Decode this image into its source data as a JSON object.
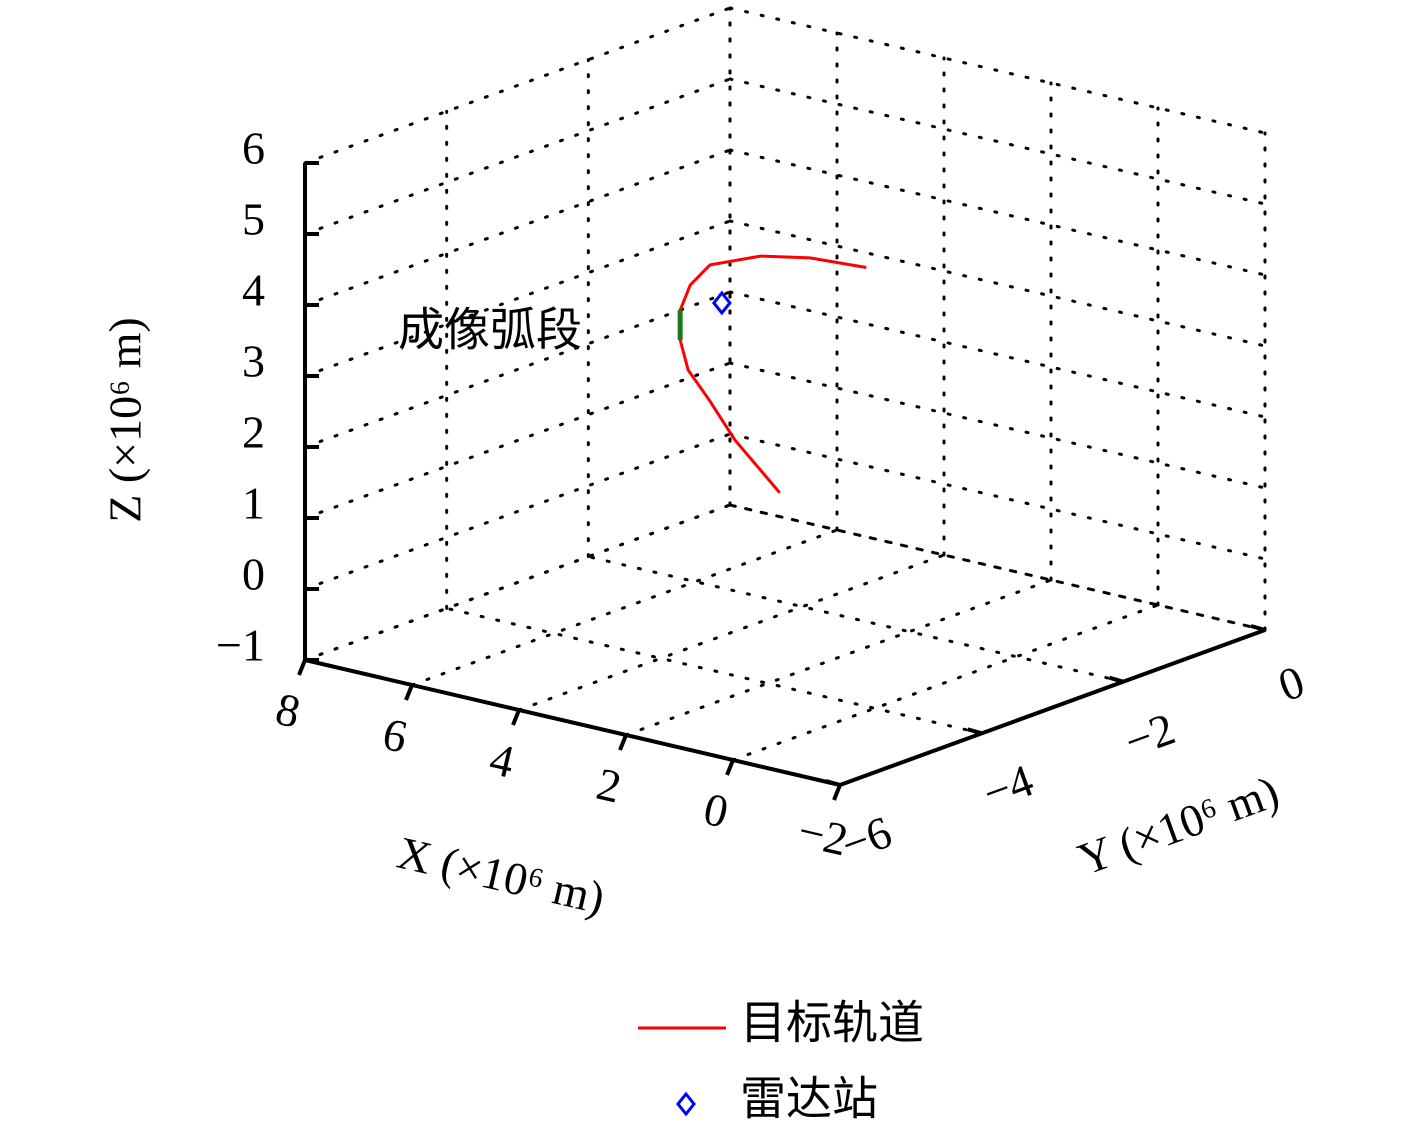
{
  "chart_data": {
    "type": "line3d",
    "xlabel": "X (×10⁶ m)",
    "ylabel": "Y (×10⁶ m)",
    "zlabel": "Z (×10⁶ m)",
    "xlim": [
      -2,
      8
    ],
    "ylim": [
      -6,
      0
    ],
    "zlim": [
      -1,
      6
    ],
    "xticks": [
      {
        "value": -2,
        "label": "−2"
      },
      0,
      2,
      4,
      6,
      8
    ],
    "yticks": [
      {
        "value": -6,
        "label": "−6"
      },
      {
        "value": -4,
        "label": "−4"
      },
      {
        "value": -2,
        "label": "−2"
      },
      0
    ],
    "zticks": [
      {
        "value": -1,
        "label": "−1"
      },
      0,
      1,
      2,
      3,
      4,
      5,
      6
    ],
    "grid": true,
    "series": [
      {
        "name": "目标轨道",
        "color": "#ff0000",
        "x": [
          0.45,
          1.82,
          2.83,
          3.75,
          4.43,
          4.96,
          5.3,
          5.46,
          5.05,
          4.65,
          4.13
        ],
        "y": [
          -5,
          -4.6,
          -4.2,
          -3.8,
          -3.4,
          -3.0,
          -2.6,
          -2.2,
          -1.8,
          -1.4,
          -1
        ],
        "z": [
          2.32,
          2.68,
          2.92,
          3.03,
          3.19,
          3.37,
          3.52,
          3.63,
          3.68,
          3.58,
          3.39
        ]
      },
      {
        "name": "雷达站",
        "color": "#0000ff",
        "marker": "diamond",
        "x": [
          4.18
        ],
        "y": [
          -3
        ],
        "z": [
          3.61
        ]
      }
    ],
    "arc": {
      "label": "成像弧段",
      "color": "#1a7a1a",
      "x": [
        4.43,
        4.96
      ],
      "y": [
        -3.4,
        -3.0
      ],
      "z": [
        3.19,
        3.37
      ]
    }
  }
}
